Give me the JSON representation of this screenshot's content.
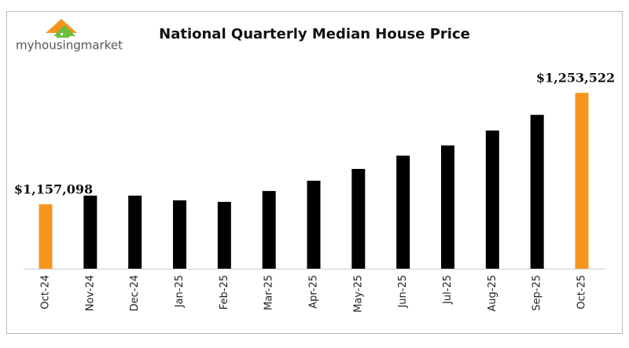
{
  "logo": "myhousingmarket",
  "chart_data": {
    "type": "bar",
    "title": "National Quarterly Median House Price",
    "categories": [
      "Oct-24",
      "Nov-24",
      "Dec-24",
      "Jan-25",
      "Feb-25",
      "Mar-25",
      "Apr-25",
      "May-25",
      "Jun-25",
      "Jul-25",
      "Aug-25",
      "Sep-25",
      "Oct-25"
    ],
    "values": [
      1157098,
      1164600,
      1164600,
      1160500,
      1159200,
      1168600,
      1177500,
      1187700,
      1199200,
      1208000,
      1220900,
      1234500,
      1253522
    ],
    "value_labels": [
      "$1,157,098",
      null,
      null,
      null,
      null,
      null,
      null,
      null,
      null,
      null,
      null,
      null,
      "$1,253,522"
    ],
    "colors": [
      "#f7941d",
      "#000000",
      "#000000",
      "#000000",
      "#000000",
      "#000000",
      "#000000",
      "#000000",
      "#000000",
      "#000000",
      "#000000",
      "#000000",
      "#f7941d"
    ],
    "ylim": [
      1101400,
      1270000
    ],
    "grid": false
  }
}
